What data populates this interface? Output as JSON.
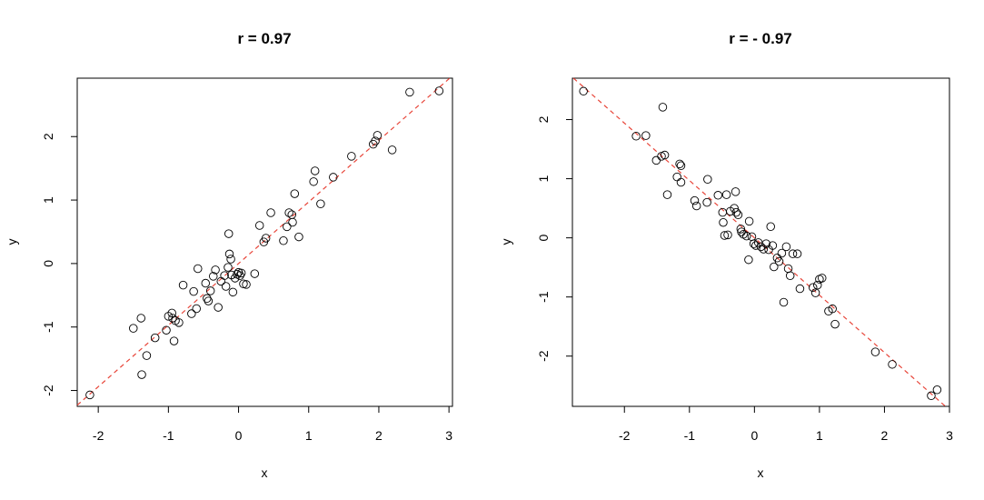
{
  "chart_data": [
    {
      "type": "scatter",
      "title": "r = 0.97",
      "xlabel": "x",
      "ylabel": "y",
      "xlim": [
        -2.3,
        3.05
      ],
      "ylim": [
        -2.25,
        2.92
      ],
      "xticks": [
        -2,
        -1,
        0,
        1,
        2,
        3
      ],
      "yticks": [
        -2,
        -1,
        0,
        1,
        2
      ],
      "xtick_labels": [
        "-2",
        "-1",
        "0",
        "1",
        "2",
        "3"
      ],
      "ytick_labels": [
        "-2",
        "-1",
        "0",
        "1",
        "2"
      ],
      "fit_line": {
        "slope": 0.97,
        "intercept": 0.0,
        "color": "#e8463a",
        "style": "dashed"
      },
      "marker": "open-circle",
      "grid": false,
      "points": [
        [
          -2.12,
          -2.07
        ],
        [
          -1.5,
          -1.02
        ],
        [
          -1.39,
          -0.86
        ],
        [
          -1.38,
          -1.75
        ],
        [
          -1.31,
          -1.45
        ],
        [
          -1.19,
          -1.17
        ],
        [
          -1.03,
          -1.05
        ],
        [
          -1.0,
          -0.83
        ],
        [
          -0.95,
          -0.78
        ],
        [
          -0.94,
          -0.86
        ],
        [
          -0.92,
          -1.22
        ],
        [
          -0.9,
          -0.9
        ],
        [
          -0.85,
          -0.93
        ],
        [
          -0.79,
          -0.34
        ],
        [
          -0.67,
          -0.79
        ],
        [
          -0.64,
          -0.44
        ],
        [
          -0.6,
          -0.71
        ],
        [
          -0.58,
          -0.08
        ],
        [
          -0.47,
          -0.31
        ],
        [
          -0.45,
          -0.55
        ],
        [
          -0.43,
          -0.59
        ],
        [
          -0.4,
          -0.43
        ],
        [
          -0.36,
          -0.2
        ],
        [
          -0.33,
          -0.1
        ],
        [
          -0.29,
          -0.69
        ],
        [
          -0.25,
          -0.28
        ],
        [
          -0.2,
          -0.19
        ],
        [
          -0.18,
          -0.36
        ],
        [
          -0.15,
          -0.06
        ],
        [
          -0.14,
          0.47
        ],
        [
          -0.13,
          0.15
        ],
        [
          -0.11,
          0.07
        ],
        [
          -0.1,
          -0.18
        ],
        [
          -0.08,
          -0.45
        ],
        [
          -0.05,
          -0.23
        ],
        [
          -0.02,
          -0.17
        ],
        [
          0.0,
          -0.14
        ],
        [
          0.02,
          -0.19
        ],
        [
          0.04,
          -0.15
        ],
        [
          0.07,
          -0.32
        ],
        [
          0.11,
          -0.33
        ],
        [
          0.23,
          -0.16
        ],
        [
          0.3,
          0.6
        ],
        [
          0.36,
          0.34
        ],
        [
          0.39,
          0.4
        ],
        [
          0.46,
          0.8
        ],
        [
          0.64,
          0.36
        ],
        [
          0.69,
          0.58
        ],
        [
          0.72,
          0.8
        ],
        [
          0.76,
          0.77
        ],
        [
          0.77,
          0.65
        ],
        [
          0.8,
          1.1
        ],
        [
          0.86,
          0.42
        ],
        [
          1.07,
          1.29
        ],
        [
          1.09,
          1.46
        ],
        [
          1.17,
          0.94
        ],
        [
          1.35,
          1.36
        ],
        [
          1.61,
          1.69
        ],
        [
          1.92,
          1.88
        ],
        [
          1.95,
          1.93
        ],
        [
          1.98,
          2.02
        ],
        [
          2.19,
          1.79
        ],
        [
          2.44,
          2.7
        ],
        [
          2.86,
          2.72
        ]
      ]
    },
    {
      "type": "scatter",
      "title": "r = - 0.97",
      "xlabel": "x",
      "ylabel": "y",
      "xlim": [
        -2.8,
        3.0
      ],
      "ylim": [
        -2.85,
        2.7
      ],
      "xticks": [
        -2,
        -1,
        0,
        1,
        2,
        3
      ],
      "yticks": [
        -2,
        -1,
        0,
        1,
        2
      ],
      "xtick_labels": [
        "-2",
        "-1",
        "0",
        "1",
        "2",
        "3"
      ],
      "ytick_labels": [
        "-2",
        "-1",
        "0",
        "1",
        "2"
      ],
      "fit_line": {
        "slope": -0.97,
        "intercept": 0.0,
        "color": "#e8463a",
        "style": "dashed"
      },
      "marker": "open-circle",
      "grid": false,
      "points": [
        [
          -2.63,
          2.48
        ],
        [
          -1.82,
          1.72
        ],
        [
          -1.67,
          1.73
        ],
        [
          -1.51,
          1.31
        ],
        [
          -1.43,
          1.38
        ],
        [
          -1.41,
          2.21
        ],
        [
          -1.38,
          1.4
        ],
        [
          -1.34,
          0.73
        ],
        [
          -1.19,
          1.03
        ],
        [
          -1.15,
          1.25
        ],
        [
          -1.13,
          1.22
        ],
        [
          -1.13,
          0.94
        ],
        [
          -0.92,
          0.63
        ],
        [
          -0.89,
          0.54
        ],
        [
          -0.73,
          0.6
        ],
        [
          -0.72,
          0.99
        ],
        [
          -0.56,
          0.72
        ],
        [
          -0.49,
          0.43
        ],
        [
          -0.48,
          0.26
        ],
        [
          -0.46,
          0.04
        ],
        [
          -0.43,
          0.73
        ],
        [
          -0.41,
          0.05
        ],
        [
          -0.37,
          0.45
        ],
        [
          -0.31,
          0.5
        ],
        [
          -0.29,
          0.78
        ],
        [
          -0.28,
          0.43
        ],
        [
          -0.25,
          0.39
        ],
        [
          -0.21,
          0.15
        ],
        [
          -0.2,
          0.1
        ],
        [
          -0.17,
          0.06
        ],
        [
          -0.12,
          0.03
        ],
        [
          -0.09,
          -0.37
        ],
        [
          -0.08,
          0.28
        ],
        [
          -0.04,
          0.02
        ],
        [
          -0.01,
          -0.1
        ],
        [
          0.02,
          -0.13
        ],
        [
          0.06,
          -0.08
        ],
        [
          0.1,
          -0.15
        ],
        [
          0.14,
          -0.19
        ],
        [
          0.18,
          -0.1
        ],
        [
          0.22,
          -0.2
        ],
        [
          0.25,
          0.19
        ],
        [
          0.28,
          -0.13
        ],
        [
          0.3,
          -0.49
        ],
        [
          0.35,
          -0.34
        ],
        [
          0.38,
          -0.4
        ],
        [
          0.42,
          -0.26
        ],
        [
          0.45,
          -1.09
        ],
        [
          0.49,
          -0.15
        ],
        [
          0.52,
          -0.52
        ],
        [
          0.55,
          -0.64
        ],
        [
          0.59,
          -0.27
        ],
        [
          0.66,
          -0.27
        ],
        [
          0.7,
          -0.86
        ],
        [
          0.9,
          -0.84
        ],
        [
          0.94,
          -0.93
        ],
        [
          0.97,
          -0.8
        ],
        [
          1.0,
          -0.7
        ],
        [
          1.04,
          -0.68
        ],
        [
          1.14,
          -1.24
        ],
        [
          1.2,
          -1.2
        ],
        [
          1.24,
          -1.46
        ],
        [
          1.86,
          -1.93
        ],
        [
          2.12,
          -2.14
        ],
        [
          2.72,
          -2.67
        ],
        [
          2.81,
          -2.57
        ]
      ]
    }
  ]
}
